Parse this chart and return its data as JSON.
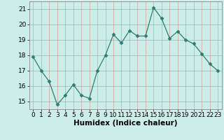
{
  "x": [
    0,
    1,
    2,
    3,
    4,
    5,
    6,
    7,
    8,
    9,
    10,
    11,
    12,
    13,
    14,
    15,
    16,
    17,
    18,
    19,
    20,
    21,
    22,
    23
  ],
  "y": [
    17.9,
    17.0,
    16.3,
    14.8,
    15.4,
    16.1,
    15.4,
    15.2,
    17.0,
    18.0,
    19.35,
    18.8,
    19.6,
    19.25,
    19.25,
    21.1,
    20.4,
    19.1,
    19.55,
    19.0,
    18.75,
    18.1,
    17.45,
    17.0
  ],
  "line_color": "#2e7d6e",
  "marker": "D",
  "marker_size": 2.5,
  "bg_color": "#cceee8",
  "grid_color": "#d4a0a0",
  "xlabel": "Humidex (Indice chaleur)",
  "xlim": [
    -0.5,
    23.5
  ],
  "ylim": [
    14.5,
    21.5
  ],
  "yticks": [
    15,
    16,
    17,
    18,
    19,
    20,
    21
  ],
  "xticks": [
    0,
    1,
    2,
    3,
    4,
    5,
    6,
    7,
    8,
    9,
    10,
    11,
    12,
    13,
    14,
    15,
    16,
    17,
    18,
    19,
    20,
    21,
    22,
    23
  ],
  "tick_labelsize": 6.5,
  "xlabel_fontsize": 7.5
}
